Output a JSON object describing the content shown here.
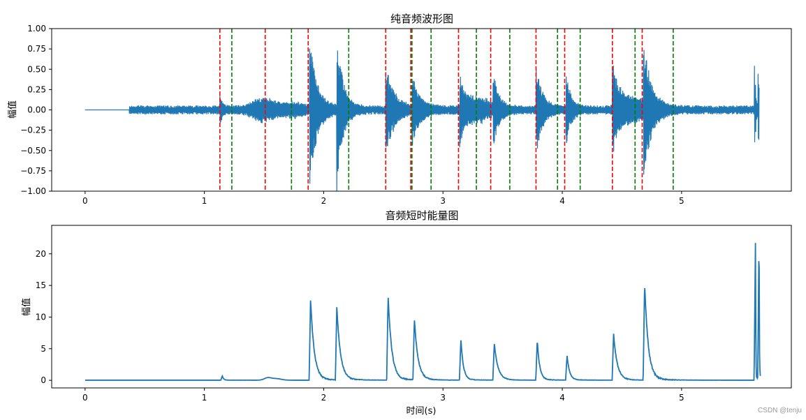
{
  "chart_data": [
    {
      "type": "line",
      "title": "纯音频波形图",
      "xlabel": "",
      "ylabel": "幅值",
      "xlim": [
        -0.28,
        5.92
      ],
      "ylim": [
        -1.0,
        1.0
      ],
      "xticks": [
        0,
        1,
        2,
        3,
        4,
        5
      ],
      "yticks": [
        -1.0,
        -0.75,
        -0.5,
        -0.25,
        0.0,
        0.25,
        0.5,
        0.75,
        1.0
      ],
      "ytick_labels": [
        "−1.00",
        "−0.75",
        "−0.50",
        "−0.25",
        "0.00",
        "0.25",
        "0.50",
        "0.75",
        "1.00"
      ],
      "grid": false,
      "line_color": "#1f77b4",
      "waveform": {
        "duration": 5.65,
        "silent_until": 0.37,
        "base_amplitude": 0.05,
        "swells": [
          {
            "t": 1.5,
            "amp": 0.12
          },
          {
            "t": 1.75,
            "amp": 0.06
          },
          {
            "t": 3.3,
            "amp": 0.12
          },
          {
            "t": 4.6,
            "amp": 0.12
          }
        ],
        "spikes": [
          {
            "t": 1.13,
            "amp": 0.19,
            "decay": 0.02
          },
          {
            "t": 1.88,
            "amp": 0.98,
            "decay": 0.06
          },
          {
            "t": 2.11,
            "amp": 0.96,
            "decay": 0.05
          },
          {
            "t": 2.52,
            "amp": 0.55,
            "decay": 0.07
          },
          {
            "t": 2.74,
            "amp": 0.42,
            "decay": 0.06
          },
          {
            "t": 3.14,
            "amp": 0.41,
            "decay": 0.05
          },
          {
            "t": 3.42,
            "amp": 0.4,
            "decay": 0.05
          },
          {
            "t": 3.78,
            "amp": 0.58,
            "decay": 0.05
          },
          {
            "t": 4.03,
            "amp": 0.45,
            "decay": 0.04
          },
          {
            "t": 4.42,
            "amp": 0.57,
            "decay": 0.06
          },
          {
            "t": 4.68,
            "amp": 0.76,
            "decay": 0.07
          },
          {
            "t": 5.61,
            "amp": 0.71,
            "decay": 0.01
          },
          {
            "t": 5.64,
            "amp": 0.72,
            "decay": 0.01
          }
        ]
      },
      "vlines_red": [
        1.13,
        1.51,
        1.87,
        2.52,
        2.73,
        3.13,
        3.4,
        3.78,
        4.02,
        4.42,
        4.67
      ],
      "vlines_green": [
        1.23,
        1.73,
        2.21,
        2.74,
        2.9,
        3.28,
        3.56,
        3.96,
        4.15,
        4.61,
        4.93
      ],
      "vline_colors": {
        "red": "#ff0000",
        "green": "#008000"
      }
    },
    {
      "type": "line",
      "title": "音频短时能量图",
      "xlabel": "时间(s)",
      "ylabel": "幅值",
      "xlim": [
        -0.28,
        5.92
      ],
      "ylim": [
        -1.2,
        24.5
      ],
      "xticks": [
        0,
        1,
        2,
        3,
        4,
        5
      ],
      "yticks": [
        0,
        5,
        10,
        15,
        20
      ],
      "grid": false,
      "line_color": "#1f77b4",
      "baseline": 0.02,
      "bumps": [
        {
          "t": 1.53,
          "amp": 0.35,
          "width": 0.04
        },
        {
          "t": 1.6,
          "amp": 0.25,
          "width": 0.06
        }
      ],
      "peaks": [
        {
          "t": 1.15,
          "amp": 0.7,
          "decay": 0.01
        },
        {
          "t": 1.89,
          "amp": 12.8,
          "decay": 0.03
        },
        {
          "t": 2.11,
          "amp": 11.6,
          "decay": 0.03
        },
        {
          "t": 2.54,
          "amp": 13.3,
          "decay": 0.03
        },
        {
          "t": 2.76,
          "amp": 9.6,
          "decay": 0.03
        },
        {
          "t": 3.15,
          "amp": 6.5,
          "decay": 0.02
        },
        {
          "t": 3.43,
          "amp": 5.8,
          "decay": 0.03
        },
        {
          "t": 3.79,
          "amp": 6.3,
          "decay": 0.02
        },
        {
          "t": 4.04,
          "amp": 3.9,
          "decay": 0.02
        },
        {
          "t": 4.43,
          "amp": 7.3,
          "decay": 0.03
        },
        {
          "t": 4.69,
          "amp": 15.3,
          "decay": 0.03
        },
        {
          "t": 5.62,
          "amp": 23.4,
          "decay": 0.002
        },
        {
          "t": 5.65,
          "amp": 23.4,
          "decay": 0.002
        }
      ]
    }
  ],
  "watermark": "CSDN @tenju"
}
